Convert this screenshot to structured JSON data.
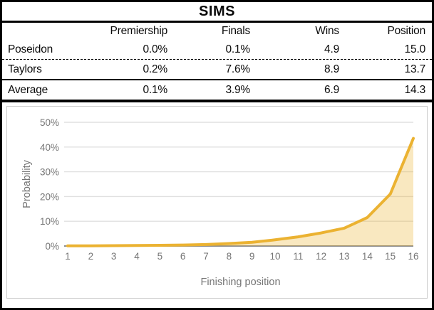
{
  "table": {
    "title": "SIMS",
    "columns": [
      "",
      "Premiership",
      "Finals",
      "Wins",
      "Position"
    ],
    "rows": [
      [
        "Poseidon",
        "0.0%",
        "0.1%",
        "4.9",
        "15.0"
      ],
      [
        "Taylors",
        "0.2%",
        "7.6%",
        "8.9",
        "13.7"
      ],
      [
        "Average",
        "0.1%",
        "3.9%",
        "6.9",
        "14.3"
      ]
    ]
  },
  "chart_data": {
    "type": "area",
    "title": "",
    "xlabel": "Finishing position",
    "ylabel": "Probability",
    "x": [
      1,
      2,
      3,
      4,
      5,
      6,
      7,
      8,
      9,
      10,
      11,
      12,
      13,
      14,
      15,
      16
    ],
    "xtick_labels": [
      "1",
      "2",
      "3",
      "4",
      "5",
      "6",
      "7",
      "8",
      "9",
      "10",
      "11",
      "12",
      "13",
      "14",
      "15",
      "16"
    ],
    "series": [
      {
        "name": "Probability",
        "values": [
          0.1,
          0.1,
          0.15,
          0.2,
          0.3,
          0.4,
          0.6,
          1.0,
          1.5,
          2.5,
          3.7,
          5.3,
          7.2,
          11.5,
          21.0,
          43.5
        ]
      }
    ],
    "ylim": [
      0,
      50
    ],
    "ytick_values": [
      0,
      10,
      20,
      30,
      40,
      50
    ],
    "ytick_labels": [
      "0%",
      "10%",
      "20%",
      "30%",
      "40%",
      "50%"
    ],
    "grid": true,
    "legend_position": "none",
    "colors": {
      "line": "#EBB231",
      "fill": "rgba(236,178,46,0.30)",
      "axis_text": "#757575",
      "gridline": "#E0E0E0",
      "baseline": "#8F8F8F",
      "card_border": "#CCCCCC",
      "frame_border": "#000000"
    }
  }
}
